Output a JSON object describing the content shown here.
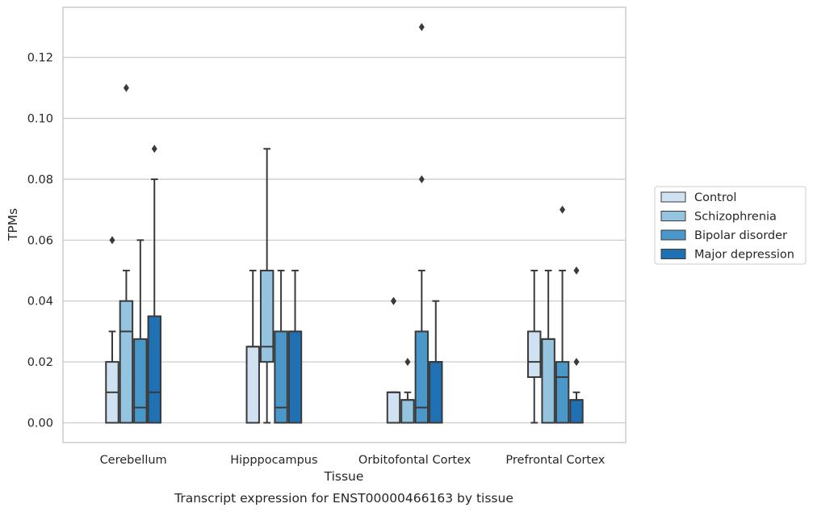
{
  "chart_data": {
    "type": "box",
    "xlabel": "Tissue",
    "ylabel": "TPMs",
    "ylim": [
      -0.0065,
      0.1365
    ],
    "yticks": [
      0.0,
      0.02,
      0.04,
      0.06,
      0.08,
      0.1,
      0.12
    ],
    "ytick_labels": [
      "0.00",
      "0.02",
      "0.04",
      "0.06",
      "0.08",
      "0.10",
      "0.12"
    ],
    "grid": "horizontal",
    "legend_position": "outside-right",
    "categories": [
      "Cerebellum",
      "Hipppocampus",
      "Orbitofontal Cortex",
      "Prefrontal Cortex"
    ],
    "series": [
      {
        "name": "Control",
        "color": "#d0e1f2",
        "boxes": [
          {
            "whisker_low": 0.0,
            "q1": 0.0,
            "median": 0.01,
            "q3": 0.02,
            "whisker_high": 0.03,
            "outliers": [
              0.06
            ]
          },
          {
            "whisker_low": 0.0,
            "q1": 0.0,
            "median": 0.025,
            "q3": 0.025,
            "whisker_high": 0.05,
            "outliers": []
          },
          {
            "whisker_low": 0.0,
            "q1": 0.0,
            "median": 0.01,
            "q3": 0.01,
            "whisker_high": 0.01,
            "outliers": [
              0.04,
              0.04
            ]
          },
          {
            "whisker_low": 0.0,
            "q1": 0.015,
            "median": 0.02,
            "q3": 0.03,
            "whisker_high": 0.05,
            "outliers": []
          }
        ]
      },
      {
        "name": "Schizophrenia",
        "color": "#94c4df",
        "boxes": [
          {
            "whisker_low": 0.0,
            "q1": 0.0,
            "median": 0.03,
            "q3": 0.04,
            "whisker_high": 0.05,
            "outliers": [
              0.11
            ]
          },
          {
            "whisker_low": 0.0,
            "q1": 0.02,
            "median": 0.025,
            "q3": 0.05,
            "whisker_high": 0.09,
            "outliers": []
          },
          {
            "whisker_low": 0.0,
            "q1": 0.0,
            "median": 0.0075,
            "q3": 0.0075,
            "whisker_high": 0.01,
            "outliers": [
              0.02
            ]
          },
          {
            "whisker_low": 0.0,
            "q1": 0.0,
            "median": 0.0275,
            "q3": 0.0275,
            "whisker_high": 0.05,
            "outliers": []
          }
        ]
      },
      {
        "name": "Bipolar disorder",
        "color": "#4a98c9",
        "boxes": [
          {
            "whisker_low": 0.0,
            "q1": 0.0,
            "median": 0.005,
            "q3": 0.0275,
            "whisker_high": 0.06,
            "outliers": []
          },
          {
            "whisker_low": 0.0,
            "q1": 0.0,
            "median": 0.005,
            "q3": 0.03,
            "whisker_high": 0.05,
            "outliers": []
          },
          {
            "whisker_low": 0.0,
            "q1": 0.0,
            "median": 0.005,
            "q3": 0.03,
            "whisker_high": 0.05,
            "outliers": [
              0.08,
              0.13
            ]
          },
          {
            "whisker_low": 0.0,
            "q1": 0.0,
            "median": 0.015,
            "q3": 0.02,
            "whisker_high": 0.05,
            "outliers": [
              0.07
            ]
          }
        ]
      },
      {
        "name": "Major depression",
        "color": "#2070b4",
        "boxes": [
          {
            "whisker_low": 0.0,
            "q1": 0.0,
            "median": 0.01,
            "q3": 0.035,
            "whisker_high": 0.08,
            "outliers": [
              0.09
            ]
          },
          {
            "whisker_low": 0.0,
            "q1": 0.0,
            "median": 0.03,
            "q3": 0.03,
            "whisker_high": 0.05,
            "outliers": []
          },
          {
            "whisker_low": 0.0,
            "q1": 0.0,
            "median": 0.02,
            "q3": 0.02,
            "whisker_high": 0.04,
            "outliers": []
          },
          {
            "whisker_low": 0.0,
            "q1": 0.0,
            "median": 0.0075,
            "q3": 0.0075,
            "whisker_high": 0.01,
            "outliers": [
              0.02,
              0.05
            ]
          }
        ]
      }
    ]
  },
  "caption": "Transcript expression for ENST00000466163 by tissue",
  "style": {
    "edge_color": "#3a3a3a",
    "grid_color": "#cccccc",
    "frame_color": "#cccccc",
    "outlier_color": "#3a3a3a"
  }
}
